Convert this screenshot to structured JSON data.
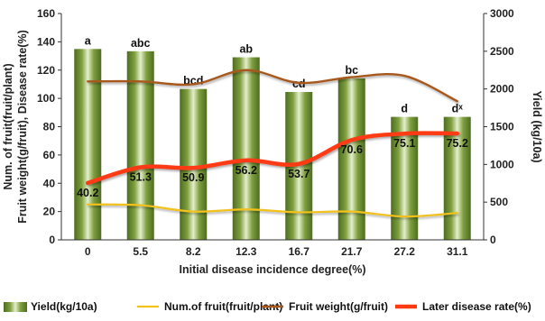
{
  "chart_data": {
    "type": "bar",
    "categories": [
      "0",
      "5.5",
      "8.2",
      "12.3",
      "16.7",
      "21.7",
      "27.2",
      "31.1"
    ],
    "xlabel": "Initial disease incidence degree(%)",
    "ylabel": "Num. of fruit(fruit/plant) Fruit weight(g/fruit), Disease rate(%)",
    "ylabel_lines": [
      "Fruit weight(g/fruit), Disease rate(%)",
      "Num. of fruit(fruit/plant)"
    ],
    "y2label": "Yield (kg/10a)",
    "ylim": [
      0,
      160
    ],
    "y2lim": [
      0,
      3000
    ],
    "yticks": [
      "0",
      "20",
      "40",
      "60",
      "80",
      "100",
      "120",
      "140",
      "160"
    ],
    "y2ticks": [
      "0",
      "500",
      "1000",
      "1500",
      "2000",
      "2500",
      "3000"
    ],
    "series": [
      {
        "name": "Yield(kg/10a)",
        "type": "bar",
        "axis": "right",
        "color": "#6e8e34",
        "values": [
          2530,
          2500,
          2000,
          2420,
          1960,
          2140,
          1630,
          1630
        ],
        "significance": [
          "a",
          "abc",
          "bcd",
          "ab",
          "cd",
          "bc",
          "d",
          "dˣ"
        ]
      },
      {
        "name": "Num.of fruit(fruit/plant)",
        "type": "line",
        "axis": "left",
        "color": "#f2c11b",
        "values": [
          25,
          24.5,
          20,
          21.5,
          19.5,
          20,
          16.5,
          19
        ]
      },
      {
        "name": "Fruit weight(g/fruit)",
        "type": "line",
        "axis": "left",
        "color": "#a8591e",
        "values": [
          112,
          112,
          110,
          120,
          111,
          115,
          116,
          98
        ]
      },
      {
        "name": "Later disease rate(%)",
        "type": "line",
        "axis": "left",
        "color": "#ff3a12",
        "values": [
          40.2,
          51.3,
          50.9,
          56.2,
          53.7,
          70.6,
          75.1,
          75.2
        ],
        "value_labels": [
          "40.2",
          "51.3",
          "50.9",
          "56.2",
          "53.7",
          "70.6",
          "75.1",
          "75.2"
        ]
      }
    ]
  }
}
